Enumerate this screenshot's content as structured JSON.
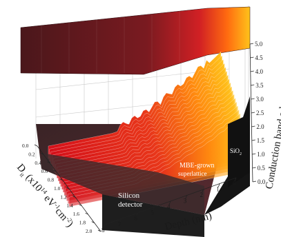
{
  "chart_data": {
    "type": "surface",
    "title": "",
    "surface_color": "#E0121A",
    "highlight_color": "#FFB800",
    "top_plane_color": "#5A1C20",
    "dark_face_color": "#1E1E1E",
    "x_axis": {
      "label": "Depth (nm)",
      "ticks": [
        "8",
        "7",
        "6",
        "5",
        "4",
        "3",
        "2",
        "1",
        "0"
      ],
      "range": [
        8,
        0
      ]
    },
    "y_axis": {
      "label_main": "D",
      "label_sub": "it",
      "label_rest": " (x10",
      "label_sup": "14",
      "label_tail": " eV",
      "label_exp": "-1",
      "label_end": "cm",
      "label_exp2": "-2",
      "label_close": ")",
      "ticks": [
        "0.0",
        "0.2",
        "0.4",
        "0.6",
        "0.8",
        "1.0",
        "1.2",
        "1.4",
        "1.6",
        "1.8",
        "2.0"
      ],
      "range": [
        0,
        2
      ]
    },
    "z_axis": {
      "label": "Conduction band edge (eV)",
      "ticks": [
        "0.0",
        "0.5",
        "1.0",
        "1.5",
        "2.0",
        "2.5",
        "3.0",
        "3.5",
        "4.0",
        "4.5",
        "5.0"
      ],
      "range": [
        0,
        5
      ]
    },
    "annotations": [
      {
        "id": "silicon-detector",
        "lines": [
          "Silicon",
          "detector"
        ]
      },
      {
        "id": "mbe-superlattice",
        "lines": [
          "MBE-grown",
          "superlattice"
        ]
      },
      {
        "id": "sio2",
        "lines": [
          "SiO"
        ],
        "sub": "2"
      }
    ],
    "profile": {
      "depth": [
        8,
        7,
        6,
        5,
        4.5,
        4,
        3.5,
        3,
        2.5,
        2,
        1.5,
        1,
        0.5,
        0
      ],
      "band_edge_low_dit": [
        0.6,
        0.6,
        0.6,
        0.6,
        0.7,
        0.9,
        1.1,
        1.4,
        1.7,
        2.0,
        2.3,
        2.7,
        3.1,
        3.5
      ],
      "band_edge_high_dit": [
        5.0,
        5.0,
        5.0,
        5.0,
        5.0,
        5.0,
        5.0,
        5.0,
        5.0,
        5.0,
        5.0,
        5.0,
        5.0,
        5.0
      ]
    }
  }
}
